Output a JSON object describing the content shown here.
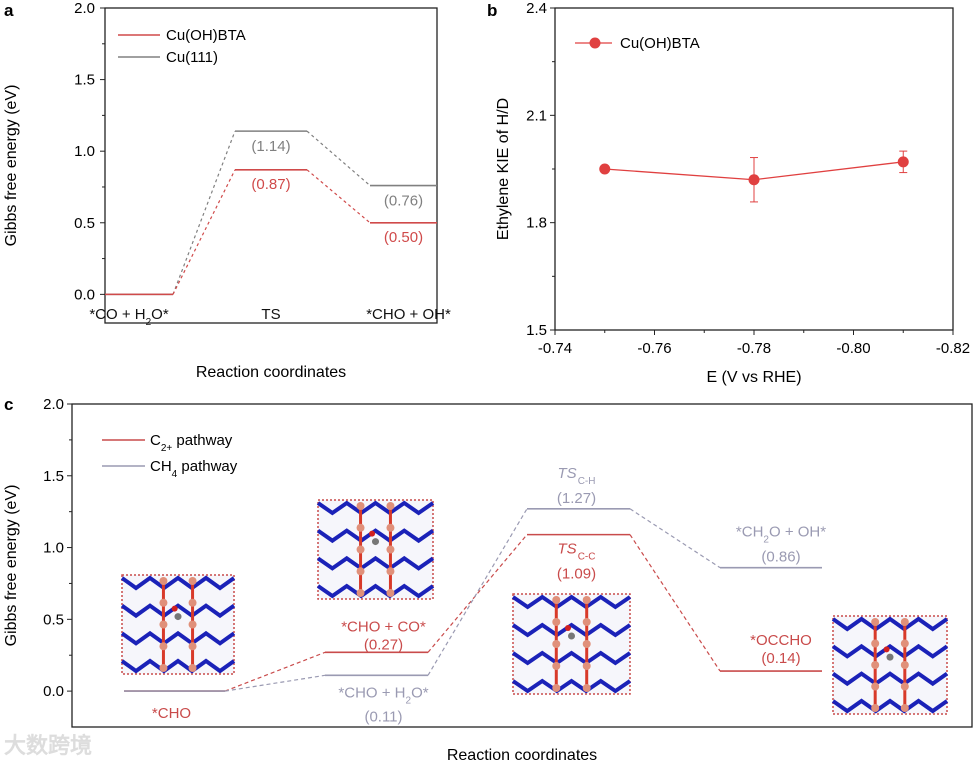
{
  "chart_data": [
    {
      "panel": "a",
      "type": "line",
      "title": "",
      "xlabel": "Reaction coordinates",
      "ylabel": "Gibbs free energy (eV)",
      "ylim": [
        -0.2,
        2.0
      ],
      "yticks": [
        "0.0",
        "0.5",
        "1.0",
        "1.5",
        "2.0"
      ],
      "categories": [
        "*CO + H2O*",
        "TS",
        "*CHO + OH*"
      ],
      "series": [
        {
          "name": "Cu(OH)BTA",
          "color": "#d04a4a",
          "values": [
            0,
            0.87,
            0.5
          ],
          "labels": [
            "",
            "(0.87)",
            "(0.50)"
          ]
        },
        {
          "name": "Cu(111)",
          "color": "#808080",
          "values": [
            0,
            1.14,
            0.76
          ],
          "labels": [
            "",
            "(1.14)",
            "(0.76)"
          ]
        }
      ],
      "legend": "top-left"
    },
    {
      "panel": "b",
      "type": "line",
      "xlabel": "E (V vs RHE)",
      "ylabel": "Ethylene KIE of H/D",
      "xlim": [
        -0.74,
        -0.82
      ],
      "ylim": [
        1.5,
        2.4
      ],
      "xticks": [
        "-0.74",
        "-0.76",
        "-0.78",
        "-0.80",
        "-0.82"
      ],
      "yticks": [
        "1.5",
        "1.8",
        "2.1",
        "2.4"
      ],
      "series": [
        {
          "name": "Cu(OH)BTA",
          "color": "#e04040",
          "x": [
            -0.75,
            -0.78,
            -0.81
          ],
          "y": [
            1.95,
            1.92,
            1.97
          ],
          "err": [
            0.005,
            0.062,
            0.03
          ]
        }
      ],
      "legend": "top-left"
    },
    {
      "panel": "c",
      "type": "line",
      "xlabel": "Reaction coordinates",
      "ylabel": "Gibbs free energy (eV)",
      "ylim": [
        -0.25,
        2.0
      ],
      "yticks": [
        "0.0",
        "0.5",
        "1.0",
        "1.5",
        "2.0"
      ],
      "series": [
        {
          "name": "C2+ pathway",
          "legend_main": "C",
          "legend_sub": "2+",
          "legend_rest": " pathway",
          "color": "#c94b4b",
          "values": [
            0,
            0.27,
            1.09,
            0.14
          ],
          "labels": [
            [
              "*CHO",
              ""
            ],
            [
              "*CHO + CO*",
              "(0.27)"
            ],
            [
              "TS|C-C",
              "(1.09)"
            ],
            [
              "*OCCHO",
              "(0.14)"
            ]
          ]
        },
        {
          "name": "CH4 pathway",
          "legend_main": "CH",
          "legend_sub": "4",
          "legend_rest": " pathway",
          "color": "#9a9ab2",
          "values": [
            0,
            0.11,
            1.27,
            0.86
          ],
          "labels": [
            [
              "",
              ""
            ],
            [
              "*CHO + H2O*",
              "(0.11)"
            ],
            [
              "TS|C-H",
              "(1.27)"
            ],
            [
              "*CH2O + OH*",
              "(0.86)"
            ]
          ]
        }
      ],
      "legend": "top-left"
    }
  ],
  "panel_labels": [
    "a",
    "b",
    "c"
  ],
  "watermark": "大数跨境"
}
